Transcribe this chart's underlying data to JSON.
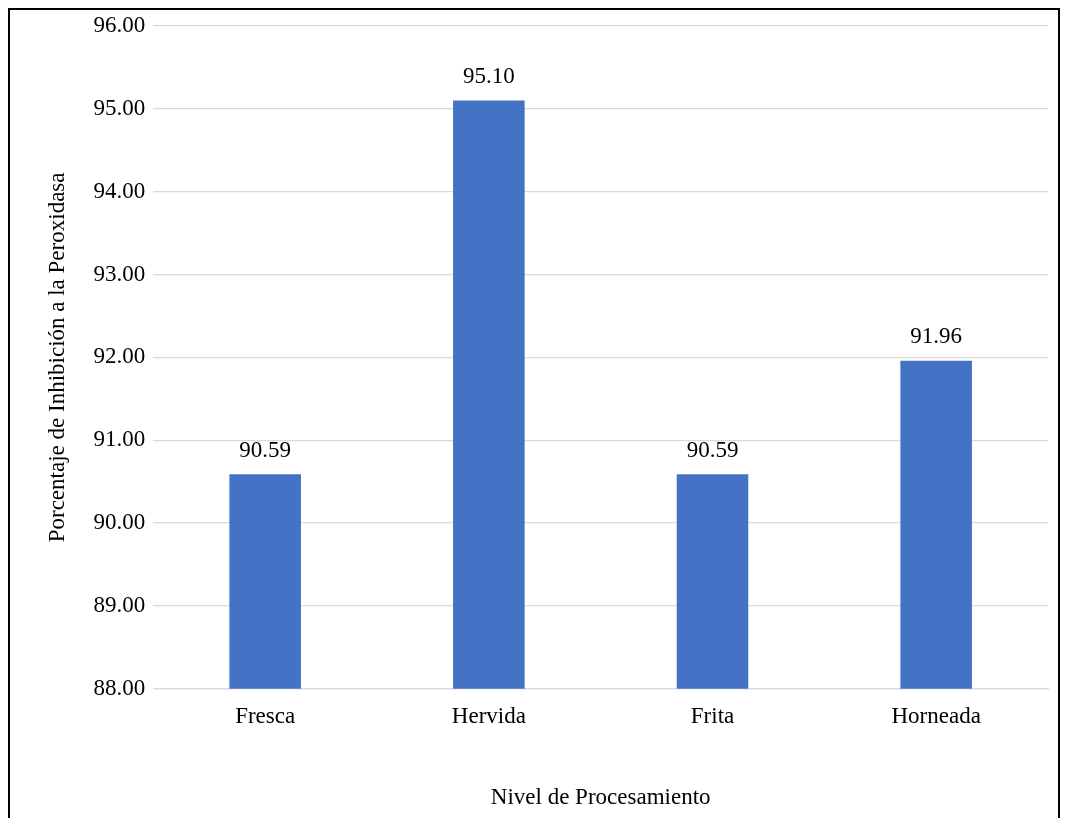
{
  "chart_data": {
    "type": "bar",
    "xlabel": "Nivel de Procesamiento",
    "ylabel": "Porcentaje de Inhibición a la Peroxidasa",
    "categories": [
      "Fresca",
      "Hervida",
      "Frita",
      "Horneada"
    ],
    "values": [
      90.59,
      95.1,
      90.59,
      91.96
    ],
    "value_labels": [
      "90.59",
      "95.10",
      "90.59",
      "91.96"
    ],
    "color": "#4472c4",
    "ylim": [
      88,
      96
    ],
    "yticks": [
      {
        "value": 88,
        "label": "88.00"
      },
      {
        "value": 89,
        "label": "89.00"
      },
      {
        "value": 90,
        "label": "90.00"
      },
      {
        "value": 91,
        "label": "91.00"
      },
      {
        "value": 92,
        "label": "92.00"
      },
      {
        "value": 93,
        "label": "93.00"
      },
      {
        "value": 94,
        "label": "94.00"
      },
      {
        "value": 95,
        "label": "95.00"
      },
      {
        "value": 96,
        "label": "96.00"
      }
    ],
    "grid": "y"
  }
}
